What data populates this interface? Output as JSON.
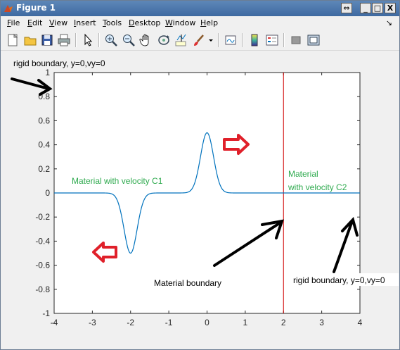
{
  "window": {
    "title": "Figure 1",
    "controls": {
      "dock": "⇔",
      "minimize": "_",
      "maximize": "□",
      "close": "X"
    },
    "dock_arrow": "↘"
  },
  "menu": [
    {
      "label": "File",
      "u": "F",
      "rest": "ile"
    },
    {
      "label": "Edit",
      "u": "E",
      "rest": "dit"
    },
    {
      "label": "View",
      "u": "V",
      "rest": "iew"
    },
    {
      "label": "Insert",
      "u": "I",
      "rest": "nsert"
    },
    {
      "label": "Tools",
      "u": "T",
      "rest": "ools"
    },
    {
      "label": "Desktop",
      "u": "D",
      "rest": "esktop"
    },
    {
      "label": "Window",
      "u": "W",
      "rest": "indow"
    },
    {
      "label": "Help",
      "u": "H",
      "rest": "elp"
    }
  ],
  "toolbar_icons": [
    "new-figure-icon",
    "open-file-icon",
    "save-icon",
    "print-icon",
    "edit-plot-arrow-icon",
    "zoom-in-icon",
    "zoom-out-icon",
    "pan-hand-icon",
    "rotate-3d-icon",
    "data-cursor-icon",
    "brush-icon",
    "link-plot-icon",
    "insert-colorbar-icon",
    "insert-legend-icon",
    "hide-plot-tools-icon",
    "show-plot-tools-icon"
  ],
  "colors": {
    "line": "#0072bd",
    "boundary": "#d00000",
    "annot_green": "#2eaa4e",
    "arrow_red": "#e0202a"
  },
  "annotations": {
    "top_left": "rigid boundary, y=0,vy=0",
    "bottom_right": "rigid boundary, y=0,vy=0",
    "material_boundary": "Material boundary",
    "c1": "Material with velocity C1",
    "c2_line1": "Material",
    "c2_line2": "with velocity C2"
  },
  "chart_data": {
    "type": "line",
    "xlim": [
      -4,
      4
    ],
    "ylim": [
      -1,
      1
    ],
    "xticks": [
      -4,
      -3,
      -2,
      -1,
      0,
      1,
      2,
      3,
      4
    ],
    "yticks": [
      -1,
      -0.8,
      -0.6,
      -0.4,
      -0.2,
      0,
      0.2,
      0.4,
      0.6,
      0.8,
      1
    ],
    "xtick_labels": [
      "-4",
      "-3",
      "-2",
      "-1",
      "0",
      "1",
      "2",
      "3",
      "4"
    ],
    "ytick_labels": [
      "-1",
      "-0.8",
      "-0.6",
      "-0.4",
      "-0.2",
      "0",
      "0.2",
      "0.4",
      "0.6",
      "0.8",
      "1"
    ],
    "series": [
      {
        "pulses": [
          {
            "center": -2,
            "amplitude": -0.5,
            "sigma": 0.17
          },
          {
            "center": 0,
            "amplitude": 0.5,
            "sigma": 0.17
          }
        ]
      }
    ],
    "vertical_line_x": 2
  }
}
